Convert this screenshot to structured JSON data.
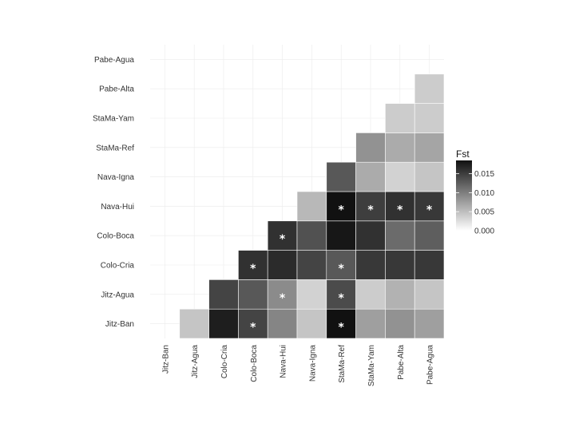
{
  "chart_data": {
    "type": "heatmap",
    "title": "",
    "xlabel": "",
    "ylabel": "",
    "x_categories": [
      "Jitz-Ban",
      "Jitz-Agua",
      "Colo-Cria",
      "Colo-Boca",
      "Nava-Hui",
      "Nava-Igna",
      "StaMa-Ref",
      "StaMa-Yam",
      "Pabe-Alta",
      "Pabe-Agua"
    ],
    "y_categories": [
      "Jitz-Ban",
      "Jitz-Agua",
      "Colo-Cria",
      "Colo-Boca",
      "Nava-Hui",
      "Nava-Igna",
      "StaMa-Ref",
      "StaMa-Yam",
      "Pabe-Alta",
      "Pabe-Agua"
    ],
    "color_scale": {
      "title": "Fst",
      "min": 0,
      "max": 0.0185,
      "low_color": "#ffffff",
      "high_color": "#111111",
      "ticks": [
        0.0,
        0.005,
        0.01,
        0.015
      ],
      "tick_labels": [
        "0.000",
        "0.005",
        "0.010",
        "0.015"
      ]
    },
    "legend_position": "right",
    "grid": true,
    "cells": [
      {
        "row": "Jitz-Ban",
        "col": "Jitz-Agua",
        "value": 0.0045,
        "significant": false
      },
      {
        "row": "Jitz-Ban",
        "col": "Colo-Cria",
        "value": 0.0175,
        "significant": false
      },
      {
        "row": "Jitz-Ban",
        "col": "Colo-Boca",
        "value": 0.0145,
        "significant": true
      },
      {
        "row": "Jitz-Ban",
        "col": "Nava-Hui",
        "value": 0.0095,
        "significant": false
      },
      {
        "row": "Jitz-Ban",
        "col": "Nava-Igna",
        "value": 0.0045,
        "significant": false
      },
      {
        "row": "Jitz-Ban",
        "col": "StaMa-Ref",
        "value": 0.0185,
        "significant": true
      },
      {
        "row": "Jitz-Ban",
        "col": "StaMa-Yam",
        "value": 0.0075,
        "significant": false
      },
      {
        "row": "Jitz-Ban",
        "col": "Pabe-Alta",
        "value": 0.0085,
        "significant": false
      },
      {
        "row": "Jitz-Ban",
        "col": "Pabe-Agua",
        "value": 0.0075,
        "significant": false
      },
      {
        "row": "Jitz-Agua",
        "col": "Colo-Cria",
        "value": 0.0145,
        "significant": false
      },
      {
        "row": "Jitz-Agua",
        "col": "Colo-Boca",
        "value": 0.013,
        "significant": false
      },
      {
        "row": "Jitz-Agua",
        "col": "Nava-Hui",
        "value": 0.009,
        "significant": true
      },
      {
        "row": "Jitz-Agua",
        "col": "Nava-Igna",
        "value": 0.0035,
        "significant": false
      },
      {
        "row": "Jitz-Agua",
        "col": "StaMa-Ref",
        "value": 0.014,
        "significant": true
      },
      {
        "row": "Jitz-Agua",
        "col": "StaMa-Yam",
        "value": 0.004,
        "significant": false
      },
      {
        "row": "Jitz-Agua",
        "col": "Pabe-Alta",
        "value": 0.006,
        "significant": false
      },
      {
        "row": "Jitz-Agua",
        "col": "Pabe-Agua",
        "value": 0.0045,
        "significant": false
      },
      {
        "row": "Colo-Cria",
        "col": "Colo-Boca",
        "value": 0.016,
        "significant": true
      },
      {
        "row": "Colo-Cria",
        "col": "Nava-Hui",
        "value": 0.0165,
        "significant": false
      },
      {
        "row": "Colo-Cria",
        "col": "Nava-Igna",
        "value": 0.0145,
        "significant": false
      },
      {
        "row": "Colo-Cria",
        "col": "StaMa-Ref",
        "value": 0.013,
        "significant": true
      },
      {
        "row": "Colo-Cria",
        "col": "StaMa-Yam",
        "value": 0.0155,
        "significant": false
      },
      {
        "row": "Colo-Cria",
        "col": "Pabe-Alta",
        "value": 0.0155,
        "significant": false
      },
      {
        "row": "Colo-Cria",
        "col": "Pabe-Agua",
        "value": 0.0155,
        "significant": false
      },
      {
        "row": "Colo-Boca",
        "col": "Nava-Hui",
        "value": 0.016,
        "significant": true
      },
      {
        "row": "Colo-Boca",
        "col": "Nava-Igna",
        "value": 0.0135,
        "significant": false
      },
      {
        "row": "Colo-Boca",
        "col": "StaMa-Ref",
        "value": 0.018,
        "significant": false
      },
      {
        "row": "Colo-Boca",
        "col": "StaMa-Yam",
        "value": 0.016,
        "significant": false
      },
      {
        "row": "Colo-Boca",
        "col": "Pabe-Alta",
        "value": 0.0115,
        "significant": false
      },
      {
        "row": "Colo-Boca",
        "col": "Pabe-Agua",
        "value": 0.0125,
        "significant": false
      },
      {
        "row": "Nava-Hui",
        "col": "Nava-Igna",
        "value": 0.0055,
        "significant": false
      },
      {
        "row": "Nava-Hui",
        "col": "StaMa-Ref",
        "value": 0.0185,
        "significant": true
      },
      {
        "row": "Nava-Hui",
        "col": "StaMa-Yam",
        "value": 0.015,
        "significant": true
      },
      {
        "row": "Nava-Hui",
        "col": "Pabe-Alta",
        "value": 0.016,
        "significant": true
      },
      {
        "row": "Nava-Hui",
        "col": "Pabe-Agua",
        "value": 0.0155,
        "significant": true
      },
      {
        "row": "Nava-Igna",
        "col": "StaMa-Ref",
        "value": 0.013,
        "significant": false
      },
      {
        "row": "Nava-Igna",
        "col": "StaMa-Yam",
        "value": 0.0065,
        "significant": false
      },
      {
        "row": "Nava-Igna",
        "col": "Pabe-Alta",
        "value": 0.0035,
        "significant": false
      },
      {
        "row": "Nava-Igna",
        "col": "Pabe-Agua",
        "value": 0.0045,
        "significant": false
      },
      {
        "row": "StaMa-Ref",
        "col": "StaMa-Yam",
        "value": 0.0085,
        "significant": false
      },
      {
        "row": "StaMa-Ref",
        "col": "Pabe-Alta",
        "value": 0.0065,
        "significant": false
      },
      {
        "row": "StaMa-Ref",
        "col": "Pabe-Agua",
        "value": 0.007,
        "significant": false
      },
      {
        "row": "StaMa-Yam",
        "col": "Pabe-Alta",
        "value": 0.004,
        "significant": false
      },
      {
        "row": "StaMa-Yam",
        "col": "Pabe-Agua",
        "value": 0.004,
        "significant": false
      },
      {
        "row": "Pabe-Alta",
        "col": "Pabe-Agua",
        "value": 0.004,
        "significant": false
      }
    ],
    "significance_marker": "*"
  }
}
